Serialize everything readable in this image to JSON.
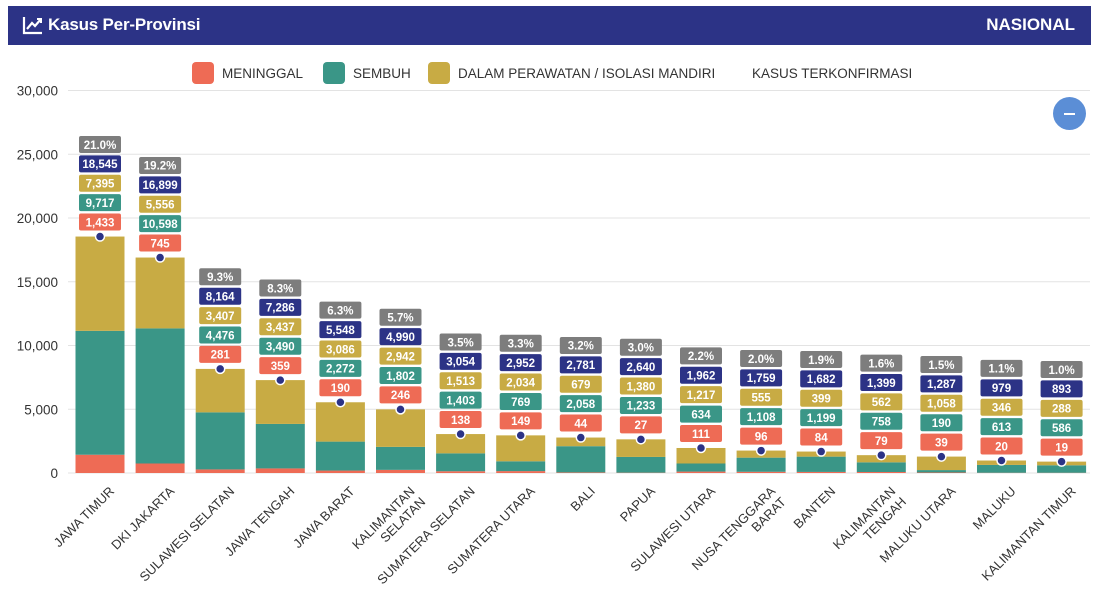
{
  "header": {
    "title": "Kasus Per-Provinsi",
    "right_label": "NASIONAL",
    "icon": "line-chart-icon"
  },
  "legend": [
    {
      "label": "MENINGGAL",
      "color": "#ee6b55"
    },
    {
      "label": "SEMBUH",
      "color": "#3a9687"
    },
    {
      "label": "DALAM PERAWATAN / ISOLASI MANDIRI",
      "color": "#c8ab44"
    },
    {
      "label": "KASUS TERKONFIRMASI",
      "color": ""
    }
  ],
  "colors": {
    "meninggal": "#ee6b55",
    "sembuh": "#3a9687",
    "perawatan": "#c8ab44",
    "terkonfirmasi": "#2c3386",
    "percent": "#7d7d7d",
    "header": "#2c3386",
    "button": "#5b8ed6"
  },
  "controls": {
    "collapse_icon": "minus-icon"
  },
  "chart_data": {
    "type": "bar",
    "stacked": true,
    "categories": [
      "JAWA TIMUR",
      "DKI JAKARTA",
      "SULAWESI SELATAN",
      "JAWA TENGAH",
      "JAWA BARAT",
      "KALIMANTAN SELATAN",
      "SUMATERA SELATAN",
      "SUMATERA UTARA",
      "BALI",
      "PAPUA",
      "SULAWESI UTARA",
      "NUSA TENGGARA BARAT",
      "BANTEN",
      "KALIMANTAN TENGAH",
      "MALUKU UTARA",
      "MALUKU",
      "KALIMANTAN TIMUR"
    ],
    "series": [
      {
        "name": "MENINGGAL",
        "values": [
          1433,
          745,
          281,
          359,
          190,
          246,
          138,
          149,
          44,
          27,
          111,
          96,
          84,
          79,
          39,
          20,
          19
        ]
      },
      {
        "name": "SEMBUH",
        "values": [
          9717,
          10598,
          4476,
          3490,
          2272,
          1802,
          1403,
          769,
          2058,
          1233,
          634,
          1108,
          1199,
          758,
          190,
          613,
          586
        ]
      },
      {
        "name": "DALAM PERAWATAN / ISOLASI MANDIRI",
        "values": [
          7395,
          5556,
          3407,
          3437,
          3086,
          2942,
          1513,
          2034,
          679,
          1380,
          1217,
          555,
          399,
          562,
          1058,
          346,
          288
        ]
      }
    ],
    "confirmed": [
      18545,
      16899,
      8164,
      7286,
      5548,
      4990,
      3054,
      2952,
      2781,
      2640,
      1962,
      1759,
      1682,
      1399,
      1287,
      979,
      893
    ],
    "confirmed_labels": [
      "18,545",
      "16,899",
      "8,164",
      "7,286",
      "5,548",
      "4,990",
      "3,054",
      "2,952",
      "2,781",
      "2,640",
      "1,962",
      "1,759",
      "1,682",
      "1,399",
      "1,287",
      "979",
      "893"
    ],
    "meninggal_labels": [
      "1,433",
      "745",
      "281",
      "359",
      "190",
      "246",
      "138",
      "149",
      "44",
      "27",
      "111",
      "96",
      "84",
      "79",
      "39",
      "20",
      "19"
    ],
    "sembuh_labels": [
      "9,717",
      "10,598",
      "4,476",
      "3,490",
      "2,272",
      "1,802",
      "1,403",
      "769",
      "2,058",
      "1,233",
      "634",
      "1,108",
      "1,199",
      "758",
      "190",
      "613",
      "586"
    ],
    "perawatan_labels": [
      "7,395",
      "5,556",
      "3,407",
      "3,437",
      "3,086",
      "2,942",
      "1,513",
      "2,034",
      "679",
      "1,380",
      "1,217",
      "555",
      "399",
      "562",
      "1,058",
      "346",
      "288"
    ],
    "percent_labels": [
      "21.0%",
      "19.2%",
      "9.3%",
      "8.3%",
      "6.3%",
      "5.7%",
      "3.5%",
      "3.3%",
      "3.2%",
      "3.0%",
      "2.2%",
      "2.0%",
      "1.9%",
      "1.6%",
      "1.5%",
      "1.1%",
      "1.0%"
    ],
    "ylim": [
      0,
      30000
    ],
    "yticks": [
      0,
      5000,
      10000,
      15000,
      20000,
      25000,
      30000
    ],
    "ytick_labels": [
      "0",
      "5,000",
      "10,000",
      "15,000",
      "20,000",
      "25,000",
      "30,000"
    ],
    "grid": true,
    "legend_position": "top"
  }
}
